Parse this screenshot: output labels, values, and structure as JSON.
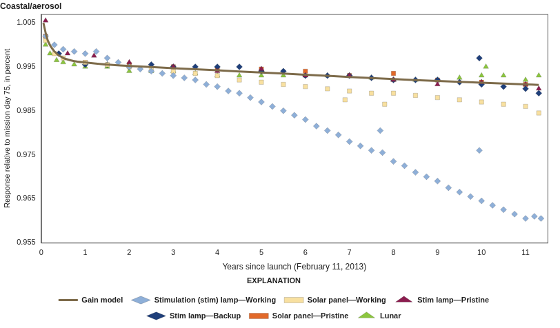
{
  "chart_data": {
    "type": "scatter",
    "title": "Coastal/aerosol",
    "x_label": "Years since launch (February 11, 2013)",
    "y_label": "Response relative to mission day 75, in percent",
    "legend_title": "EXPLANATION",
    "legend": "bottom",
    "grid": false,
    "xlim": [
      0,
      11.5
    ],
    "xticks": [
      0,
      1,
      2,
      3,
      4,
      5,
      6,
      7,
      8,
      9,
      10,
      11
    ],
    "ylim": [
      0.955,
      1.007
    ],
    "yticks": [
      0.955,
      0.965,
      0.975,
      0.985,
      0.995,
      1.005
    ],
    "series": [
      {
        "name": "Gain model",
        "type": "line",
        "marker": "line",
        "line_style": "solid",
        "color": "#7d6b4a",
        "x": [
          0.05,
          0.15,
          0.3,
          0.5,
          0.75,
          1,
          1.5,
          2,
          3,
          4,
          5,
          6,
          7,
          8,
          9,
          10,
          11,
          11.3
        ],
        "values": [
          1.005,
          1.001,
          0.9985,
          0.997,
          0.9963,
          0.996,
          0.9955,
          0.9952,
          0.9947,
          0.9942,
          0.9937,
          0.9932,
          0.9927,
          0.9922,
          0.9918,
          0.9914,
          0.991,
          0.9909
        ]
      },
      {
        "name": "Stimulation (stim) lamp—Working",
        "marker": "diamond",
        "color": "#8eafd8",
        "x": [
          0.1,
          0.3,
          0.5,
          0.75,
          1,
          1.25,
          1.5,
          1.75,
          2,
          2.25,
          2.5,
          2.75,
          3,
          3.25,
          3.5,
          3.75,
          4,
          4.25,
          4.5,
          4.75,
          5,
          5.25,
          5.5,
          5.75,
          6,
          6.25,
          6.5,
          6.75,
          7,
          7.25,
          7.5,
          7.7,
          7.75,
          8,
          8.25,
          8.5,
          8.75,
          9,
          9.25,
          9.5,
          9.75,
          9.95,
          10,
          10.25,
          10.5,
          10.75,
          11,
          11.2,
          11.35
        ],
        "values": [
          1.002,
          1.0,
          0.999,
          0.9985,
          0.998,
          0.9985,
          0.997,
          0.996,
          0.995,
          0.9945,
          0.994,
          0.9935,
          0.993,
          0.9925,
          0.992,
          0.991,
          0.9905,
          0.9895,
          0.989,
          0.988,
          0.987,
          0.986,
          0.985,
          0.984,
          0.983,
          0.9815,
          0.9805,
          0.9795,
          0.978,
          0.977,
          0.976,
          0.9805,
          0.9755,
          0.9735,
          0.9725,
          0.971,
          0.97,
          0.969,
          0.9675,
          0.9665,
          0.9655,
          0.976,
          0.9645,
          0.9635,
          0.9625,
          0.9615,
          0.9605,
          0.961,
          0.9605
        ]
      },
      {
        "name": "Solar panel—Working",
        "marker": "square",
        "color": "#f8e0a0",
        "x": [
          0.1,
          0.3,
          0.5,
          1,
          1.5,
          2,
          2.5,
          3,
          3.5,
          4,
          4.5,
          5,
          5.5,
          6,
          6.5,
          6.9,
          7,
          7.5,
          7.8,
          8,
          8.5,
          9,
          9.5,
          10,
          10.5,
          11,
          11.3
        ],
        "values": [
          1.001,
          0.998,
          0.997,
          0.996,
          0.9955,
          0.995,
          0.9945,
          0.994,
          0.9935,
          0.993,
          0.992,
          0.9915,
          0.991,
          0.9905,
          0.99,
          0.9875,
          0.9895,
          0.989,
          0.9865,
          0.989,
          0.9885,
          0.988,
          0.9875,
          0.987,
          0.9865,
          0.986,
          0.9845
        ]
      },
      {
        "name": "Stim lamp—Pristine",
        "marker": "triangle",
        "color": "#8c1d4f",
        "x": [
          0.1,
          0.6,
          1.2,
          2,
          3,
          4,
          5,
          6,
          7,
          8,
          9,
          10,
          11,
          11.3
        ],
        "values": [
          1.0055,
          0.998,
          0.9975,
          0.996,
          0.995,
          0.994,
          0.9945,
          0.993,
          0.993,
          0.992,
          0.991,
          0.9915,
          0.991,
          0.99
        ]
      },
      {
        "name": "Stim lamp—Backup",
        "marker": "diamond",
        "color": "#1f3f7a",
        "x": [
          0.4,
          1,
          1.5,
          2,
          2.5,
          3,
          3.5,
          4,
          4.5,
          5,
          5.5,
          6,
          6.5,
          7,
          7.5,
          8,
          8.5,
          9,
          9.5,
          9.95,
          10,
          10.5,
          11,
          11.3
        ],
        "values": [
          0.998,
          0.9955,
          0.9955,
          0.995,
          0.9955,
          0.995,
          0.995,
          0.995,
          0.995,
          0.994,
          0.994,
          0.993,
          0.993,
          0.993,
          0.9925,
          0.992,
          0.992,
          0.992,
          0.9915,
          0.997,
          0.991,
          0.9905,
          0.99,
          0.989
        ]
      },
      {
        "name": "Solar panel—Pristine",
        "marker": "square",
        "color": "#e2692a",
        "x": [
          0.1,
          1,
          2,
          3,
          4,
          5,
          6,
          7,
          8,
          9,
          10,
          11
        ],
        "values": [
          1.002,
          0.996,
          0.9955,
          0.995,
          0.9945,
          0.9945,
          0.994,
          0.993,
          0.9935,
          0.992,
          0.9915,
          0.991
        ]
      },
      {
        "name": "Lunar",
        "marker": "triangle",
        "color": "#8cc63f",
        "x": [
          0.1,
          0.2,
          0.35,
          0.5,
          0.75,
          1,
          1.5,
          2,
          2.5,
          3,
          3.5,
          4,
          4.5,
          5,
          5.5,
          6,
          6.5,
          7,
          7.5,
          8,
          8.5,
          9,
          9.5,
          10,
          10.1,
          10.5,
          11,
          11.3
        ],
        "values": [
          1.0,
          0.998,
          0.9965,
          0.996,
          0.9955,
          0.995,
          0.995,
          0.994,
          0.994,
          0.994,
          0.9935,
          0.993,
          0.993,
          0.993,
          0.993,
          0.993,
          0.993,
          0.993,
          0.9925,
          0.992,
          0.992,
          0.992,
          0.9925,
          0.993,
          0.995,
          0.993,
          0.992,
          0.993
        ]
      }
    ]
  }
}
